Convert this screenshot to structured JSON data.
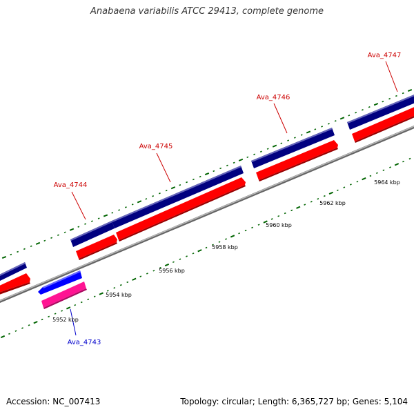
{
  "title": "Anabaena variabilis ATCC 29413, complete genome",
  "footer": {
    "accession": "Accession: NC_007413",
    "summary": "Topology: circular; Length: 6,365,727 bp; Genes: 5,104"
  },
  "colors": {
    "forward_cds": "#000080",
    "forward_gene": "#ff0000",
    "reverse_cds": "#0000ff",
    "reverse_gene": "#ff1493",
    "backbone": "#888888",
    "tick": "#006400",
    "forward_label": "#cc0000",
    "reverse_label": "#0000cc"
  },
  "scale_labels": [
    {
      "label": "5952 kbp",
      "kbp": 5952
    },
    {
      "label": "5954 kbp",
      "kbp": 5954
    },
    {
      "label": "5956 kbp",
      "kbp": 5956
    },
    {
      "label": "5958 kbp",
      "kbp": 5958
    },
    {
      "label": "5960 kbp",
      "kbp": 5960
    },
    {
      "label": "5962 kbp",
      "kbp": 5962
    },
    {
      "label": "5964 kbp",
      "kbp": 5964
    }
  ],
  "genes": [
    {
      "name": "Ava_4743",
      "strand": "reverse"
    },
    {
      "name": "Ava_4744",
      "strand": "forward"
    },
    {
      "name": "Ava_4745",
      "strand": "forward"
    },
    {
      "name": "Ava_4746",
      "strand": "forward"
    },
    {
      "name": "Ava_4747",
      "strand": "forward"
    }
  ]
}
